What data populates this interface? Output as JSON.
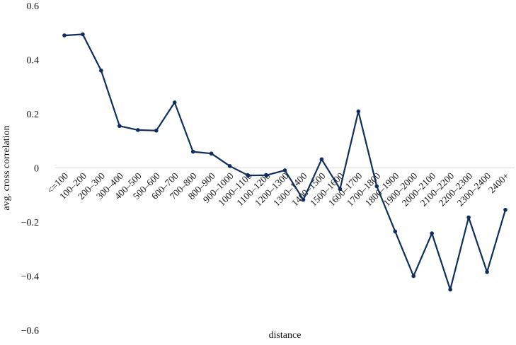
{
  "chart_data": {
    "type": "line",
    "title": "",
    "xlabel": "distance",
    "ylabel": "avg. cross correlation",
    "ylim": [
      -0.6,
      0.6
    ],
    "yticks": [
      0.6,
      0.4,
      0.2,
      0,
      -0.2,
      -0.4,
      -0.6
    ],
    "ytick_labels": [
      "0.6",
      "0.4",
      "0.2",
      "0",
      "−0.2",
      "−0.4",
      "−0.6"
    ],
    "grid": false,
    "legend": "none",
    "categories": [
      "<=100",
      "100–200",
      "200–300",
      "300–400",
      "400–500",
      "500–600",
      "600–700",
      "700–800",
      "800–900",
      "900–1000",
      "1000–1100",
      "1100–1200",
      "1200–1300",
      "1300–1400",
      "1400–1500",
      "1500–1600",
      "1600–1700",
      "1700–1800",
      "1800–1900",
      "1900–2000",
      "2000–2100",
      "2100–2200",
      "2200–2300",
      "2300–2400",
      "2400+"
    ],
    "series": [
      {
        "values": [
          0.49,
          0.494,
          0.36,
          0.155,
          0.14,
          0.138,
          0.242,
          0.06,
          0.053,
          0.007,
          -0.028,
          -0.027,
          -0.009,
          -0.118,
          0.032,
          -0.078,
          0.209,
          -0.068,
          -0.235,
          -0.4,
          -0.242,
          -0.45,
          -0.183,
          -0.385,
          -0.155
        ],
        "color": "#0f2d5e"
      }
    ]
  }
}
